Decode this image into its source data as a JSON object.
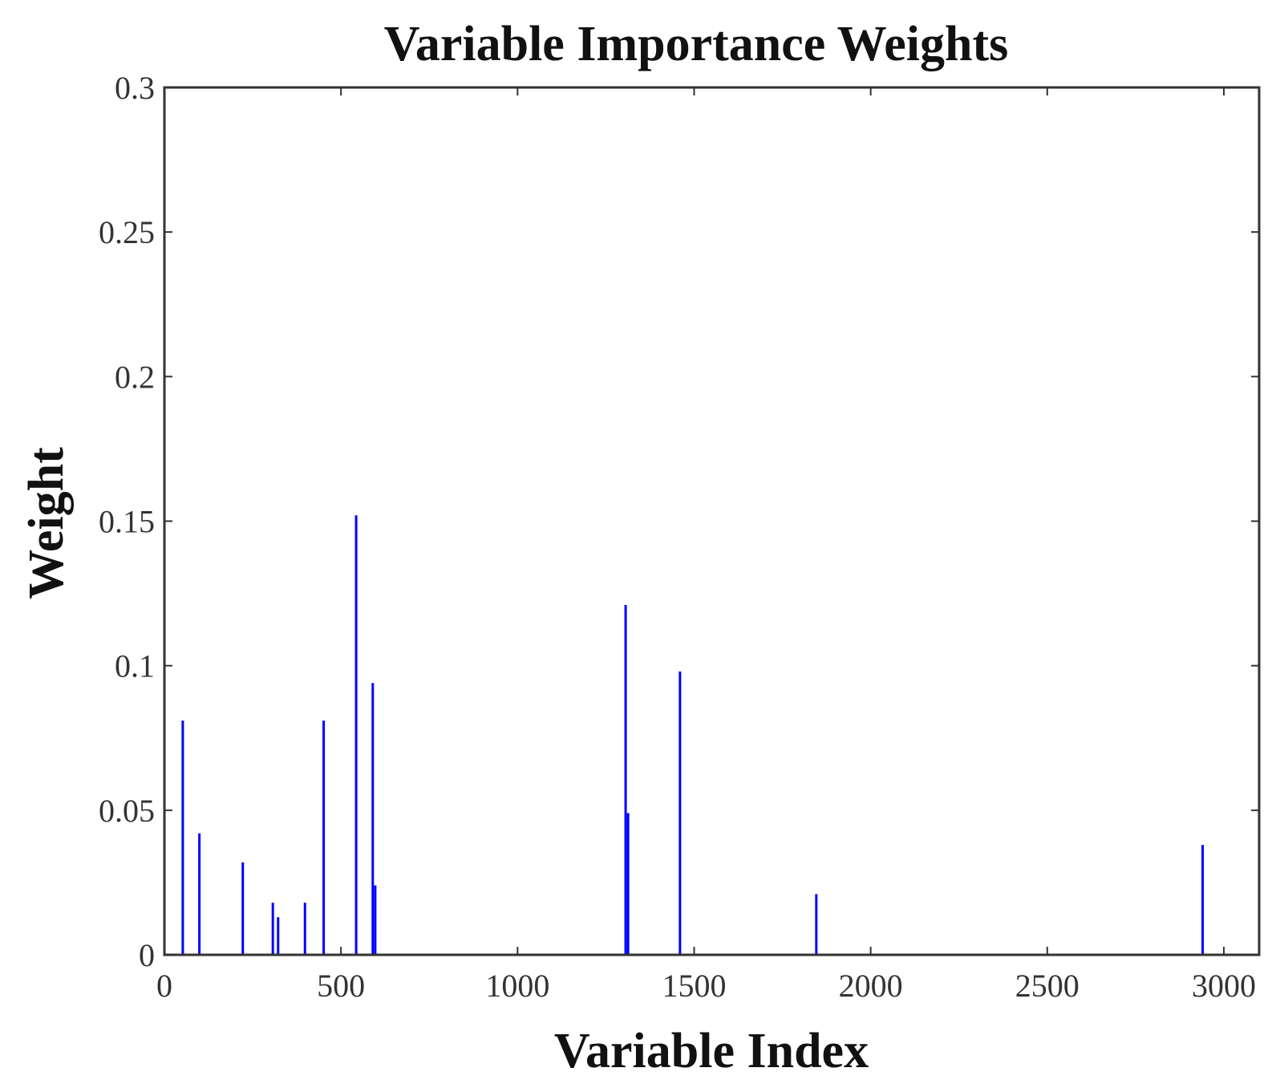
{
  "chart_data": {
    "type": "bar",
    "title": "Variable Importance Weights",
    "xlabel": "Variable Index",
    "ylabel": "Weight",
    "xlim": [
      0,
      3100
    ],
    "ylim": [
      0,
      0.3
    ],
    "xticks": [
      0,
      500,
      1000,
      1500,
      2000,
      2500,
      3000
    ],
    "xtick_labels": [
      "0",
      "500",
      "1000",
      "1500",
      "2000",
      "2500",
      "3000"
    ],
    "yticks": [
      0,
      0.05,
      0.1,
      0.15,
      0.2,
      0.25,
      0.3
    ],
    "ytick_labels": [
      "0",
      "0.05",
      "0.1",
      "0.15",
      "0.2",
      "0.25",
      "0.3"
    ],
    "grid": false,
    "bar_color": "#0000ff",
    "x": [
      52,
      99,
      222,
      307,
      322,
      398,
      451,
      543,
      590,
      597,
      1306,
      1313,
      1460,
      1846,
      2940
    ],
    "values": [
      0.081,
      0.042,
      0.032,
      0.018,
      0.013,
      0.018,
      0.081,
      0.152,
      0.094,
      0.024,
      0.121,
      0.049,
      0.098,
      0.021,
      0.038
    ]
  }
}
